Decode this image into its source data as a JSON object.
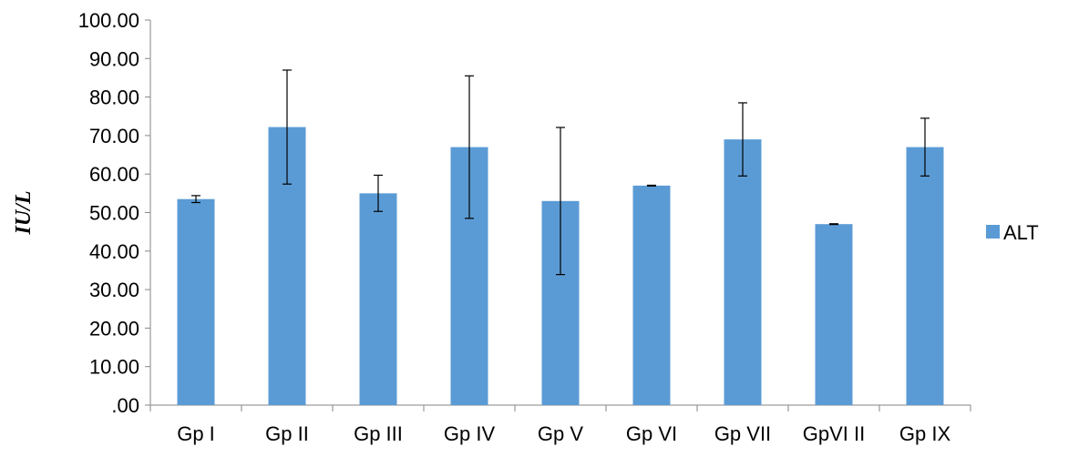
{
  "chart_data": {
    "type": "bar",
    "title": "",
    "xlabel": "",
    "ylabel": "IU/L",
    "ylim": [
      0,
      100
    ],
    "ytick_step": 10,
    "ytick_labels": [
      ".00",
      "10.00",
      "20.00",
      "30.00",
      "40.00",
      "50.00",
      "60.00",
      "70.00",
      "80.00",
      "90.00",
      "100.00"
    ],
    "categories": [
      "Gp I",
      "Gp II",
      "Gp III",
      "Gp IV",
      "Gp V",
      "Gp VI",
      "Gp VII",
      "GpVI II",
      "Gp IX"
    ],
    "series": [
      {
        "name": "ALT",
        "color": "#5B9BD5",
        "values": [
          53.5,
          72.2,
          55.0,
          67.0,
          53.0,
          57.0,
          69.0,
          47.0,
          67.0
        ],
        "errors": [
          0.9,
          14.8,
          4.7,
          18.5,
          19.1,
          0.1,
          9.5,
          0.1,
          7.5
        ]
      }
    ],
    "grid": false,
    "legend_position": "right"
  }
}
